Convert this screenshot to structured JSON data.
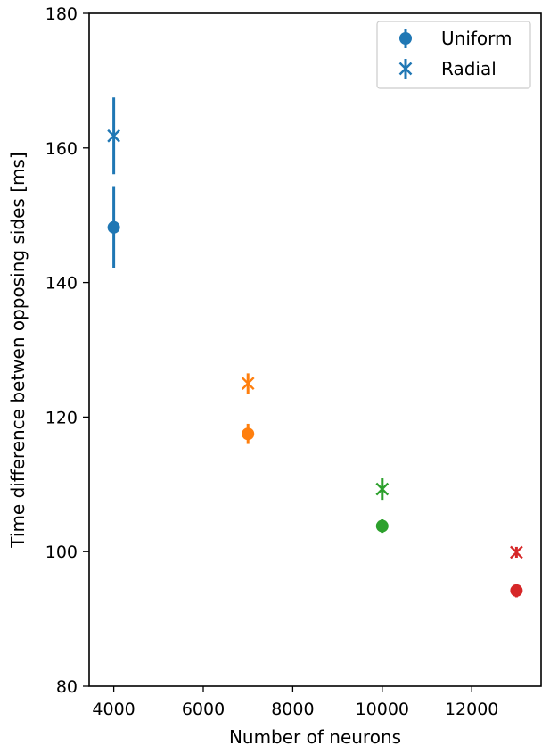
{
  "chart_data": {
    "type": "scatter",
    "xlabel": "Number of neurons",
    "ylabel": "Time difference betwen opposing sides [ms]",
    "xlim": [
      3450,
      13550
    ],
    "ylim": [
      80,
      180
    ],
    "xticks": [
      4000,
      6000,
      8000,
      10000,
      12000
    ],
    "yticks": [
      80,
      100,
      120,
      140,
      160,
      180
    ],
    "xtick_labels": [
      "4000",
      "6000",
      "8000",
      "10000",
      "12000"
    ],
    "ytick_labels": [
      "80",
      "100",
      "120",
      "140",
      "160",
      "180"
    ],
    "grid": false,
    "legend_position": "top-right",
    "point_colors": [
      "#1f77b4",
      "#ff7f0e",
      "#2ca02c",
      "#d62728"
    ],
    "legend_color": "#1f77b4",
    "series": [
      {
        "name": "Uniform",
        "marker": "circle",
        "x": [
          4000,
          7000,
          10000,
          13000
        ],
        "y": [
          148.2,
          117.5,
          103.8,
          94.2
        ],
        "yerr": [
          6.0,
          1.5,
          1.0,
          1.0
        ]
      },
      {
        "name": "Radial",
        "marker": "x",
        "x": [
          4000,
          7000,
          10000,
          13000
        ],
        "y": [
          161.8,
          125.0,
          109.3,
          99.9
        ],
        "yerr": [
          5.7,
          1.5,
          1.6,
          0.8
        ]
      }
    ]
  }
}
